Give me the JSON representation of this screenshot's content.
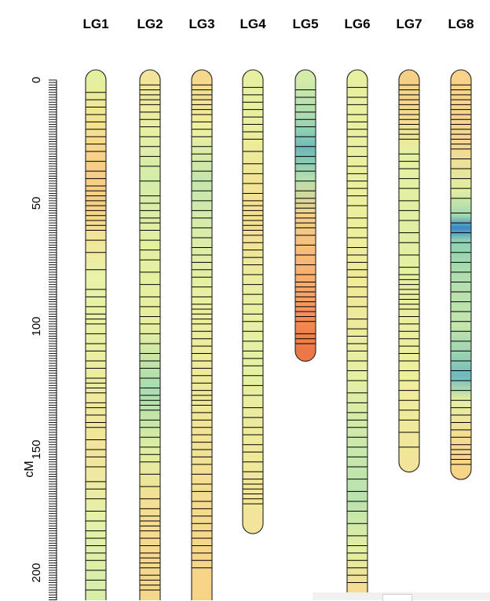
{
  "chart_data": {
    "type": "linkage-map",
    "title": "",
    "ylabel": "cM",
    "ylim": [
      0,
      215
    ],
    "yticks": [
      0,
      50,
      100,
      150,
      200
    ],
    "colors": {
      "low": "#3a86c8",
      "midlow": "#8cd0b4",
      "mid": "#e6f2a0",
      "midhigh": "#f8d884",
      "high": "#f4a868",
      "veryhigh": "#ec7040",
      "outline": "#222222",
      "marker": "#000000"
    },
    "groups": [
      {
        "name": "LG1",
        "length": 218,
        "density": [
          [
            0,
            "#e4f0a0"
          ],
          [
            20,
            "#f6e08e"
          ],
          [
            35,
            "#f8cd88"
          ],
          [
            50,
            "#f8ce86"
          ],
          [
            65,
            "#f2e69a"
          ],
          [
            80,
            "#e8f2a8"
          ],
          [
            110,
            "#eaf0a0"
          ],
          [
            150,
            "#f4e49a"
          ],
          [
            180,
            "#e4f2a8"
          ],
          [
            218,
            "#d4ecaa"
          ]
        ],
        "markers": [
          5,
          8,
          11,
          14,
          17,
          20,
          23,
          26,
          29,
          33,
          37,
          40,
          43,
          45,
          47,
          49,
          51,
          53,
          55,
          57,
          59,
          61,
          65,
          70,
          77,
          85,
          88,
          92,
          95,
          97,
          99,
          103,
          107,
          110,
          114,
          117,
          121,
          123,
          125,
          127,
          131,
          133,
          136,
          139,
          141,
          146,
          150,
          153,
          157,
          163,
          166,
          170,
          175,
          179,
          183,
          186,
          189,
          192,
          195,
          199,
          203,
          207
        ]
      },
      {
        "name": "LG2",
        "length": 218,
        "density": [
          [
            0,
            "#f2e49a"
          ],
          [
            20,
            "#e8f0a2"
          ],
          [
            40,
            "#d4ecaa"
          ],
          [
            70,
            "#e4f0a0"
          ],
          [
            100,
            "#e8ef9e"
          ],
          [
            125,
            "#a8dcb0"
          ],
          [
            150,
            "#e0efa2"
          ],
          [
            170,
            "#f4e094"
          ],
          [
            190,
            "#f6d88e"
          ],
          [
            218,
            "#f2d890"
          ]
        ],
        "markers": [
          2,
          4,
          6,
          8,
          10,
          13,
          16,
          19,
          23,
          27,
          31,
          35,
          41,
          47,
          50,
          53,
          56,
          58,
          61,
          65,
          69,
          73,
          78,
          83,
          88,
          92,
          96,
          99,
          103,
          107,
          111,
          114,
          117,
          121,
          125,
          128,
          130,
          132,
          134,
          138,
          141,
          145,
          149,
          152,
          155,
          160,
          165,
          170,
          174,
          177,
          179,
          181,
          183,
          186,
          189,
          192,
          194,
          196,
          198,
          201,
          203,
          205,
          207
        ]
      },
      {
        "name": "LG3",
        "length": 218,
        "density": [
          [
            0,
            "#f6d88c"
          ],
          [
            20,
            "#eef0a0"
          ],
          [
            40,
            "#c4e6ac"
          ],
          [
            60,
            "#d8ecaa"
          ],
          [
            90,
            "#eaf0a0"
          ],
          [
            130,
            "#f0e89a"
          ],
          [
            170,
            "#f4dc90"
          ],
          [
            195,
            "#f6d488"
          ],
          [
            218,
            "#f8d286"
          ]
        ],
        "markers": [
          2,
          4,
          6,
          8,
          10,
          12,
          14,
          17,
          20,
          23,
          27,
          30,
          33,
          37,
          41,
          45,
          49,
          53,
          56,
          60,
          64,
          68,
          71,
          74,
          77,
          80,
          84,
          88,
          91,
          93,
          95,
          97,
          99,
          102,
          105,
          108,
          111,
          114,
          117,
          120,
          123,
          126,
          128,
          130,
          132,
          135,
          138,
          141,
          144,
          147,
          150,
          153,
          156,
          160,
          164,
          167,
          171,
          174,
          177,
          180,
          183,
          186,
          189,
          192,
          195,
          198
        ]
      },
      {
        "name": "LG4",
        "length": 180,
        "density": [
          [
            0,
            "#e6f0a0"
          ],
          [
            20,
            "#eaef9e"
          ],
          [
            40,
            "#f2e496"
          ],
          [
            60,
            "#f4e094"
          ],
          [
            90,
            "#e8f0a2"
          ],
          [
            120,
            "#e6f0a2"
          ],
          [
            150,
            "#f0e89a"
          ],
          [
            180,
            "#f2e49a"
          ]
        ],
        "markers": [
          3,
          6,
          9,
          12,
          15,
          18,
          21,
          24,
          29,
          34,
          38,
          42,
          46,
          49,
          51,
          53,
          55,
          57,
          59,
          61,
          63,
          66,
          69,
          72,
          75,
          79,
          83,
          87,
          91,
          95,
          98,
          102,
          106,
          110,
          113,
          116,
          120,
          124,
          128,
          133,
          137,
          141,
          144,
          148,
          151,
          155,
          159,
          162,
          164,
          166,
          168,
          170,
          172
        ]
      },
      {
        "name": "LG5",
        "length": 110,
        "density": [
          [
            0,
            "#d4ecaa"
          ],
          [
            15,
            "#aadcb0"
          ],
          [
            28,
            "#6cbab8"
          ],
          [
            40,
            "#b4e0ae"
          ],
          [
            55,
            "#f4d088"
          ],
          [
            70,
            "#f8bc78"
          ],
          [
            85,
            "#f6a86c"
          ],
          [
            100,
            "#f08650"
          ],
          [
            110,
            "#ec7848"
          ]
        ],
        "markers": [
          4,
          7,
          10,
          13,
          16,
          19,
          23,
          27,
          31,
          34,
          37,
          41,
          45,
          48,
          50,
          52,
          54,
          56,
          58,
          60,
          63,
          67,
          71,
          75,
          79,
          82,
          84,
          86,
          88,
          90,
          92,
          94,
          96,
          98,
          103,
          105,
          107
        ]
      },
      {
        "name": "LG6",
        "length": 208,
        "density": [
          [
            0,
            "#e8f0a0"
          ],
          [
            30,
            "#eaf0a0"
          ],
          [
            60,
            "#eeef9c"
          ],
          [
            90,
            "#f0e89a"
          ],
          [
            120,
            "#e6f0a2"
          ],
          [
            150,
            "#c8e8ac"
          ],
          [
            170,
            "#b8e2ae"
          ],
          [
            190,
            "#e4f0a2"
          ],
          [
            208,
            "#f4dc92"
          ]
        ],
        "markers": [
          3,
          7,
          10,
          14,
          17,
          20,
          23,
          27,
          31,
          35,
          38,
          41,
          44,
          47,
          51,
          56,
          60,
          64,
          68,
          71,
          74,
          77,
          80,
          84,
          88,
          92,
          97,
          101,
          104,
          107,
          110,
          114,
          118,
          122,
          127,
          131,
          135,
          138,
          141,
          145,
          149,
          153,
          157,
          162,
          167,
          171,
          175,
          180,
          185,
          189,
          192,
          195,
          198,
          201,
          204
        ]
      },
      {
        "name": "LG7",
        "length": 155,
        "density": [
          [
            0,
            "#f6cf86"
          ],
          [
            15,
            "#f4dc90"
          ],
          [
            30,
            "#e6f0a2"
          ],
          [
            60,
            "#e0efa2"
          ],
          [
            90,
            "#eaf0a0"
          ],
          [
            120,
            "#eeef9c"
          ],
          [
            155,
            "#f2e49a"
          ]
        ],
        "markers": [
          2,
          4,
          6,
          8,
          10,
          12,
          14,
          16,
          18,
          20,
          22,
          24,
          30,
          33,
          36,
          40,
          44,
          49,
          53,
          57,
          62,
          66,
          71,
          76,
          79,
          81,
          83,
          85,
          87,
          89,
          91,
          93,
          96,
          99,
          102,
          105,
          108,
          111,
          114,
          118,
          122,
          126,
          130,
          134,
          138,
          143,
          149
        ]
      },
      {
        "name": "LG8",
        "length": 158,
        "density": [
          [
            0,
            "#f8d288"
          ],
          [
            25,
            "#f6d690"
          ],
          [
            45,
            "#e0efa2"
          ],
          [
            55,
            "#a0d8b0"
          ],
          [
            60,
            "#3a86c8"
          ],
          [
            65,
            "#8cd0b4"
          ],
          [
            80,
            "#b0deae"
          ],
          [
            100,
            "#c4e6ac"
          ],
          [
            115,
            "#8ccab4"
          ],
          [
            120,
            "#6cb8c0"
          ],
          [
            130,
            "#e6f0a2"
          ],
          [
            145,
            "#f4dc92"
          ],
          [
            158,
            "#f8d488"
          ]
        ],
        "markers": [
          2,
          4,
          6,
          8,
          10,
          12,
          14,
          16,
          18,
          20,
          22,
          24,
          26,
          28,
          32,
          36,
          40,
          44,
          48,
          54,
          58,
          62,
          66,
          70,
          74,
          78,
          82,
          86,
          90,
          94,
          98,
          102,
          106,
          110,
          114,
          118,
          122,
          126,
          130,
          133,
          136,
          139,
          142,
          145,
          148,
          150,
          152,
          154,
          156
        ]
      }
    ]
  }
}
